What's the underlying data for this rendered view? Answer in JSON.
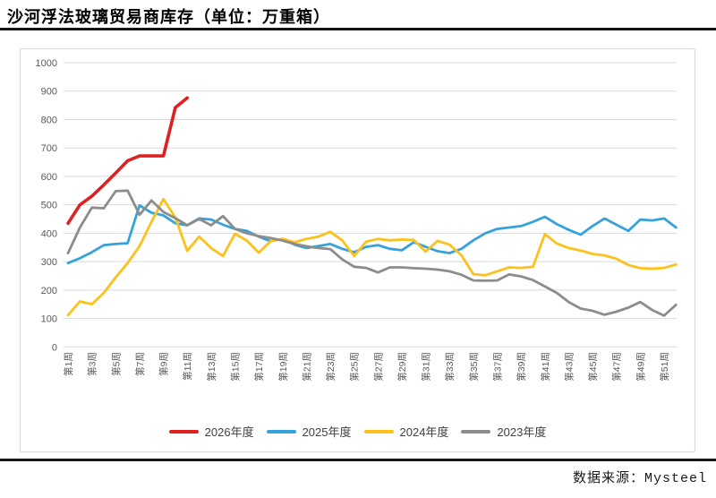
{
  "footer": {
    "source_note": "数据来源：Mysteel"
  },
  "chart_data": {
    "type": "line",
    "title": "沙河浮法玻璃贸易商库存（单位：万重箱）",
    "xlabel": "",
    "ylabel": "",
    "ylim": [
      0,
      1000
    ],
    "y_ticks": [
      0,
      100,
      200,
      300,
      400,
      500,
      600,
      700,
      800,
      900,
      1000
    ],
    "x_tick_labels": [
      "第1周",
      "第3周",
      "第5周",
      "第7周",
      "第9周",
      "第11周",
      "第13周",
      "第15周",
      "第17周",
      "第19周",
      "第21周",
      "第23周",
      "第25周",
      "第27周",
      "第29周",
      "第31周",
      "第33周",
      "第35周",
      "第37周",
      "第39周",
      "第41周",
      "第43周",
      "第45周",
      "第47周",
      "第49周",
      "第51周"
    ],
    "weeks_total": 52,
    "grid": "horizontal-only",
    "legend_position": "bottom-center",
    "gridline_color": "#d9d9d9",
    "axis_text_color": "#595959",
    "series": [
      {
        "name": "2026年度",
        "color": "#e02020",
        "line_width": 3.6,
        "start_week": 1,
        "values": [
          435,
          500,
          530,
          570,
          612,
          655,
          672,
          672,
          672,
          842,
          876
        ]
      },
      {
        "name": "2025年度",
        "color": "#36a2db",
        "line_width": 2.8,
        "start_week": 1,
        "values": [
          295,
          312,
          333,
          358,
          362,
          365,
          498,
          472,
          463,
          435,
          428,
          452,
          448,
          430,
          415,
          408,
          388,
          372,
          380,
          360,
          348,
          355,
          362,
          345,
          333,
          352,
          358,
          345,
          340,
          368,
          352,
          337,
          330,
          345,
          375,
          400,
          415,
          420,
          425,
          440,
          458,
          432,
          412,
          395,
          425,
          452,
          430,
          408,
          448,
          445,
          452,
          420
        ]
      },
      {
        "name": "2024年度",
        "color": "#fcc11a",
        "line_width": 2.8,
        "start_week": 1,
        "values": [
          112,
          160,
          150,
          190,
          245,
          295,
          355,
          440,
          520,
          455,
          338,
          388,
          348,
          320,
          398,
          374,
          332,
          372,
          380,
          368,
          380,
          388,
          405,
          375,
          320,
          370,
          380,
          375,
          378,
          376,
          335,
          373,
          360,
          322,
          256,
          252,
          266,
          280,
          278,
          282,
          397,
          364,
          348,
          339,
          327,
          322,
          310,
          288,
          277,
          275,
          278,
          290
        ]
      },
      {
        "name": "2023年度",
        "color": "#8c8c8c",
        "line_width": 2.8,
        "start_week": 1,
        "values": [
          330,
          420,
          490,
          488,
          548,
          550,
          465,
          515,
          475,
          453,
          428,
          450,
          428,
          460,
          415,
          400,
          390,
          383,
          374,
          362,
          354,
          348,
          344,
          308,
          282,
          278,
          262,
          280,
          280,
          277,
          275,
          272,
          266,
          254,
          234,
          233,
          234,
          255,
          248,
          235,
          213,
          190,
          158,
          135,
          127,
          113,
          124,
          138,
          158,
          130,
          110,
          148
        ]
      }
    ]
  }
}
